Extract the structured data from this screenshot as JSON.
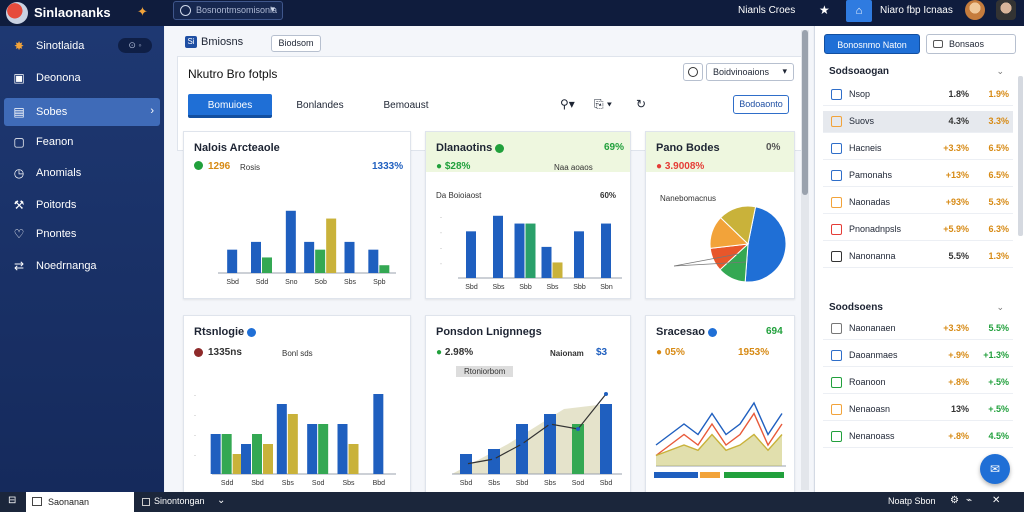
{
  "app": {
    "brand": "Sinlaonanks",
    "search_placeholder": "Bosnontmsomisonla",
    "user_name": "Nianls Croes",
    "user_name2": "Niaro fbp Icnaas"
  },
  "sidebar": {
    "badge": "⊙ ◦",
    "items": [
      {
        "label": "Sinotlaida",
        "icon": "star-icon"
      },
      {
        "label": "Deonona",
        "icon": "grid-icon"
      },
      {
        "label": "Sobes",
        "icon": "list-icon"
      },
      {
        "label": "Feanon",
        "icon": "square-icon"
      },
      {
        "label": "Anomials",
        "icon": "clock-icon"
      },
      {
        "label": "Poitords",
        "icon": "wrench-icon"
      },
      {
        "label": "Pnontes",
        "icon": "heart-icon"
      },
      {
        "label": "Noedrnanga",
        "icon": "share-icon"
      }
    ]
  },
  "main": {
    "breadcrumb": "Bmiosns",
    "breadcrumb_icon": "Si",
    "breadcrumb_button": "Biodsom",
    "panel_title": "Nkutro Bro fotpls",
    "panel_select": "Boidvinoaions",
    "tabs": [
      "Bomuioes",
      "Bonlandes",
      "Bemoaust"
    ],
    "panel_button": "Bodoaonto",
    "cards": [
      {
        "title": "Nalois Arcteaole",
        "kpi1": "1296",
        "kpi1_sub": "Rosis",
        "kpi2": "1333%"
      },
      {
        "title": "Dlanaotins",
        "kpi1": "$28%",
        "kpi1_sub": "Naa aoaos",
        "kpi2": "69%",
        "sub_left": "Da Boioiaost",
        "sub_right": "60%"
      },
      {
        "title": "Pano Bodes",
        "kpi1": "3.9008%",
        "kpi1_sub": "",
        "kpi2": "0%",
        "sub_left": "Nanebomacnus"
      },
      {
        "title": "Rtsnlogie",
        "kpi1": "1335ns",
        "kpi1_sub": "Bonl sds"
      },
      {
        "title": "Ponsdon Lnignnegs",
        "kpi1": "2.98%",
        "kpi1_sub": "Naionam",
        "kpi2": "$3",
        "legend": "Rtoniorbom"
      },
      {
        "title": "Sracesao",
        "kpi1": "05%",
        "kpi2": "1953%",
        "kpi3": "694"
      }
    ]
  },
  "right_panel": {
    "button1": "Bonosnmo Naton",
    "button2": "Bonsaos",
    "section1": "Sodsoaogan",
    "section2": "Soodsoens",
    "list1": [
      {
        "name": "Nsop",
        "v1": "1.8%",
        "v2": "1.9%",
        "color": "#2f6ec9"
      },
      {
        "name": "Suovs",
        "v1": "4.3%",
        "v2": "3.3%",
        "color": "#f2a33a"
      },
      {
        "name": "Hacneis",
        "v1": "+3.3%",
        "v2": "6.5%",
        "color": "#2f6ec9"
      },
      {
        "name": "Pamonahs",
        "v1": "+13%",
        "v2": "6.5%",
        "color": "#2f6ec9"
      },
      {
        "name": "Naonadas",
        "v1": "+93%",
        "v2": "5.3%",
        "color": "#f2a33a"
      },
      {
        "name": "Pnonadnpsls",
        "v1": "+5.9%",
        "v2": "6.3%",
        "color": "#e53c36"
      },
      {
        "name": "Nanonanna",
        "v1": "5.5%",
        "v2": "1.3%",
        "color": "#333"
      }
    ],
    "list2": [
      {
        "name": "Naonanaen",
        "v1": "+3.3%",
        "v2": "5.5%",
        "color": "#777"
      },
      {
        "name": "Daoanmaes",
        "v1": "+.9%",
        "v2": "+1.3%",
        "color": "#2f6ec9"
      },
      {
        "name": "Roanoon",
        "v1": "+.8%",
        "v2": "+.5%",
        "color": "#21a03c"
      },
      {
        "name": "Nenaoasn",
        "v1": "13%",
        "v2": "+.5%",
        "color": "#f2a33a"
      },
      {
        "name": "Nenanoass",
        "v1": "+.8%",
        "v2": "4.5%",
        "color": "#21a03c"
      }
    ]
  },
  "bottom": {
    "tab1": "Saonanan",
    "tab2": "Sinontongan",
    "right": "Noatp Sbon"
  },
  "chart_data": [
    {
      "type": "bar",
      "title": "Nalois Arcteaole",
      "categories": [
        "Sbd",
        "Sdd",
        "Sno",
        "Sob",
        "Sbs",
        "Spb"
      ],
      "series": [
        {
          "values": [
            3,
            4,
            8,
            4,
            4,
            3
          ],
          "color": "#1f5fbf"
        },
        {
          "values": [
            0,
            2,
            0,
            3,
            0,
            1
          ],
          "color": "#34a853"
        },
        {
          "values": [
            0,
            0,
            0,
            7,
            0,
            0
          ],
          "color": "#c9b23a"
        }
      ],
      "ylim": [
        0,
        9
      ]
    },
    {
      "type": "bar",
      "title": "Dlanaotins",
      "categories": [
        "Sbd",
        "Sbs",
        "Sbb",
        "Sbs",
        "Sbb",
        "Sbn"
      ],
      "series": [
        {
          "values": [
            6,
            8,
            7,
            4,
            6,
            7
          ],
          "color": "#1f5fbf"
        },
        {
          "values": [
            0,
            0,
            7,
            0,
            0,
            0
          ],
          "color": "#2aa06a"
        },
        {
          "values": [
            0,
            0,
            0,
            2,
            0,
            0
          ],
          "color": "#c9b23a"
        }
      ],
      "ylim": [
        0,
        9
      ]
    },
    {
      "type": "pie",
      "title": "Pano Bodes",
      "values": [
        48,
        12,
        10,
        14,
        16
      ],
      "colors": [
        "#1f6fd6",
        "#34a853",
        "#e8562a",
        "#f2a33a",
        "#c9b23a"
      ]
    },
    {
      "type": "bar",
      "title": "Rtsnlogie",
      "categories": [
        "Sdd",
        "Sbd",
        "Sbs",
        "Sod",
        "Sbs",
        "Bbd"
      ],
      "series": [
        {
          "values": [
            4,
            3,
            7,
            5,
            5,
            8
          ],
          "color": "#1f5fbf"
        },
        {
          "values": [
            4,
            4,
            0,
            5,
            0,
            0
          ],
          "color": "#34a853"
        },
        {
          "values": [
            2,
            3,
            6,
            0,
            3,
            0
          ],
          "color": "#c9b23a"
        }
      ],
      "ylim": [
        0,
        9
      ]
    },
    {
      "type": "line",
      "title": "Ponsdon Lnignnegs",
      "x": [
        "Sbd",
        "Sbs",
        "Sbd",
        "Sbs",
        "Sod",
        "Sbd"
      ],
      "series": [
        {
          "values": [
            1,
            1.5,
            3,
            5,
            4.5,
            8
          ]
        }
      ],
      "bars": [
        2,
        2.5,
        5,
        6,
        5,
        7
      ],
      "ylim": [
        0,
        9
      ]
    },
    {
      "type": "area",
      "title": "Sracesao",
      "series": [
        {
          "values": [
            2,
            3,
            4,
            3,
            5,
            3,
            4,
            6,
            3,
            5
          ],
          "color": "#1f5fbf"
        },
        {
          "values": [
            1,
            2,
            3,
            2,
            4,
            2,
            3,
            5,
            2,
            4
          ],
          "color": "#e85a3a"
        },
        {
          "values": [
            1,
            1.5,
            2,
            1.5,
            3,
            1.5,
            2,
            3,
            1.5,
            3
          ],
          "color": "#c9b23a"
        }
      ],
      "ylim": [
        0,
        8
      ]
    }
  ]
}
